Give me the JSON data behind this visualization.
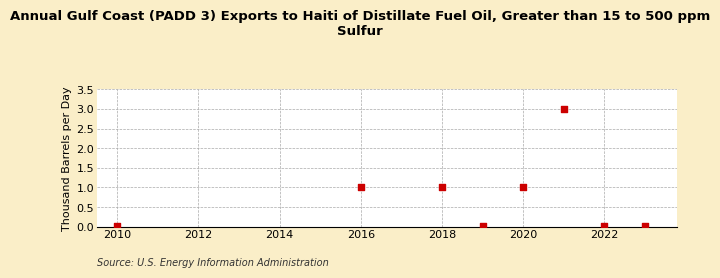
{
  "title": "Annual Gulf Coast (PADD 3) Exports to Haiti of Distillate Fuel Oil, Greater than 15 to 500 ppm\nSulfur",
  "ylabel": "Thousand Barrels per Day",
  "source": "Source: U.S. Energy Information Administration",
  "background_color": "#faeec8",
  "plot_background_color": "#ffffff",
  "x_data": [
    2010,
    2016,
    2018,
    2019,
    2020,
    2021,
    2022,
    2023
  ],
  "y_data": [
    0.02,
    1.0,
    1.0,
    0.02,
    1.0,
    3.0,
    0.02,
    0.02
  ],
  "marker_color": "#cc0000",
  "marker_size": 4,
  "xlim": [
    2009.5,
    2023.8
  ],
  "ylim": [
    0.0,
    3.5
  ],
  "yticks": [
    0.0,
    0.5,
    1.0,
    1.5,
    2.0,
    2.5,
    3.0,
    3.5
  ],
  "xticks": [
    2010,
    2012,
    2014,
    2016,
    2018,
    2020,
    2022
  ],
  "grid_color": "#aaaaaa",
  "title_fontsize": 9.5,
  "axis_fontsize": 8,
  "source_fontsize": 7
}
